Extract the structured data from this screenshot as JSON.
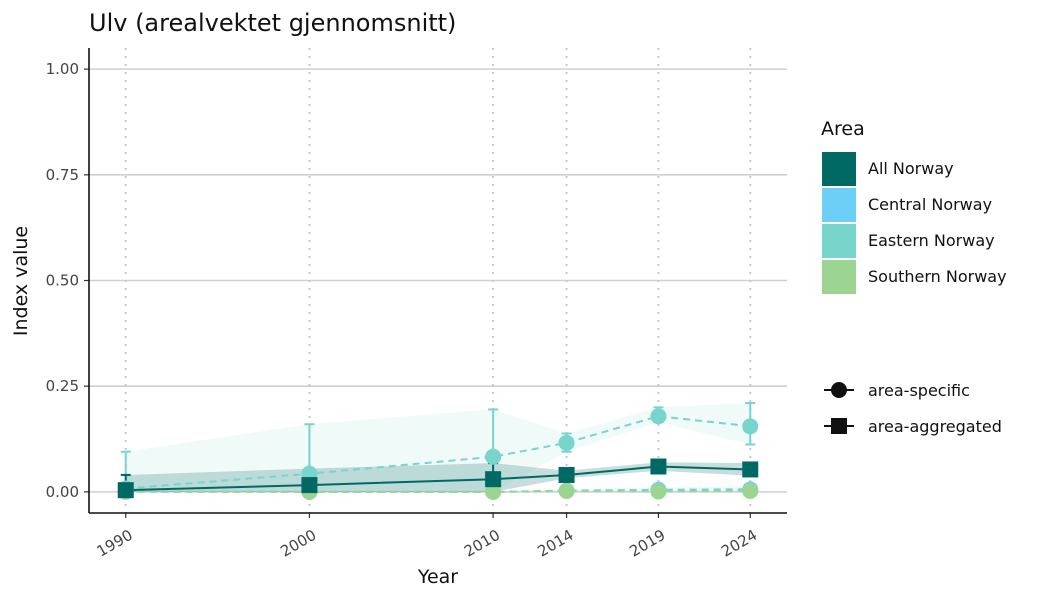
{
  "chart_data": {
    "type": "line",
    "title": "Ulv (arealvektet gjennomsnitt)",
    "xlabel": "Year",
    "ylabel": "Index value",
    "x": [
      1990,
      2000,
      2010,
      2014,
      2019,
      2024
    ],
    "x_ticks": [
      "1990",
      "2000",
      "2010",
      "2014",
      "2019",
      "2024"
    ],
    "y_ticks": [
      "0.00",
      "0.25",
      "0.50",
      "0.75",
      "1.00"
    ],
    "ylim": [
      -0.05,
      1.05
    ],
    "grid": "horizontal major lines; vertical dotted lines at data years",
    "legend": {
      "title": "Area",
      "position": "right",
      "areas": [
        {
          "name": "All Norway",
          "color": "#006964"
        },
        {
          "name": "Central Norway",
          "color": "#6dcff6"
        },
        {
          "name": "Eastern Norway",
          "color": "#78d5cb"
        },
        {
          "name": "Southern Norway",
          "color": "#9bd591"
        }
      ],
      "shapes": [
        {
          "name": "area-specific",
          "marker": "circle"
        },
        {
          "name": "area-aggregated",
          "marker": "square"
        }
      ]
    },
    "series": [
      {
        "name": "Eastern Norway",
        "kind": "area-specific",
        "color": "#78d5cb",
        "values": [
          0.008,
          0.043,
          0.083,
          0.116,
          0.179,
          0.155
        ],
        "lower": [
          0.0,
          0.0,
          0.0,
          0.095,
          0.165,
          0.112
        ],
        "upper": [
          0.095,
          0.16,
          0.195,
          0.138,
          0.2,
          0.21
        ]
      },
      {
        "name": "Central Norway",
        "kind": "area-specific",
        "color": "#6dcff6",
        "values": [
          0.001,
          0.0,
          0.0,
          0.003,
          0.005,
          0.006
        ],
        "lower": [
          0.0,
          0.0,
          0.0,
          0.0,
          0.0,
          0.0
        ],
        "upper": [
          0.003,
          0.002,
          0.002,
          0.006,
          0.01,
          0.014
        ]
      },
      {
        "name": "Southern Norway",
        "kind": "area-specific",
        "color": "#9bd591",
        "values": [
          0.0,
          0.0,
          0.0,
          0.002,
          0.001,
          0.002
        ],
        "lower": [
          0.0,
          0.0,
          0.0,
          0.0,
          0.0,
          0.0
        ],
        "upper": [
          0.002,
          0.002,
          0.002,
          0.004,
          0.004,
          0.005
        ]
      },
      {
        "name": "All Norway",
        "kind": "area-aggregated",
        "color": "#006964",
        "values": [
          0.004,
          0.016,
          0.03,
          0.04,
          0.06,
          0.053
        ],
        "lower": [
          0.0,
          0.0,
          0.0,
          0.032,
          0.05,
          0.038
        ],
        "upper": [
          0.04,
          0.055,
          0.068,
          0.05,
          0.07,
          0.068
        ]
      }
    ]
  }
}
